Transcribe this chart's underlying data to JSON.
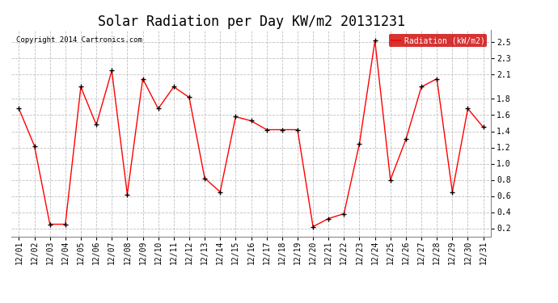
{
  "title": "Solar Radiation per Day KW/m2 20131231",
  "copyright_text": "Copyright 2014 Cartronics.com",
  "legend_label": "Radiation (kW/m2)",
  "dates": [
    "12/01",
    "12/02",
    "12/03",
    "12/04",
    "12/05",
    "12/06",
    "12/07",
    "12/08",
    "12/09",
    "12/10",
    "12/11",
    "12/12",
    "12/13",
    "12/14",
    "12/15",
    "12/16",
    "12/17",
    "12/18",
    "12/19",
    "12/20",
    "12/21",
    "12/22",
    "12/23",
    "12/24",
    "12/25",
    "12/26",
    "12/27",
    "12/28",
    "12/29",
    "12/30",
    "12/31"
  ],
  "values": [
    1.68,
    1.22,
    0.25,
    0.25,
    1.95,
    1.48,
    2.15,
    0.62,
    2.05,
    1.68,
    1.95,
    1.82,
    0.82,
    0.65,
    1.58,
    1.53,
    1.42,
    1.42,
    1.42,
    0.22,
    0.32,
    0.38,
    1.25,
    2.52,
    0.8,
    1.3,
    1.95,
    2.05,
    0.65,
    1.68,
    1.45
  ],
  "line_color": "#ff0000",
  "marker_color": "#000000",
  "bg_color": "#ffffff",
  "grid_color": "#b0b0b0",
  "ylim": [
    0.1,
    2.65
  ],
  "ytick_vals": [
    0.2,
    0.4,
    0.6,
    0.8,
    1.0,
    1.2,
    1.4,
    1.6,
    1.8,
    2.1,
    2.3,
    2.5
  ],
  "ytick_labels": [
    "0.2",
    "0.4",
    "0.6",
    "0.8",
    "1.0",
    "1.2",
    "1.4",
    "1.6",
    "1.8",
    "2.1",
    "2.3",
    "2.5"
  ],
  "title_fontsize": 12,
  "tick_fontsize": 7,
  "copyright_fontsize": 6.5,
  "legend_bg": "#cc0000",
  "legend_text_color": "#ffffff",
  "legend_fontsize": 7
}
